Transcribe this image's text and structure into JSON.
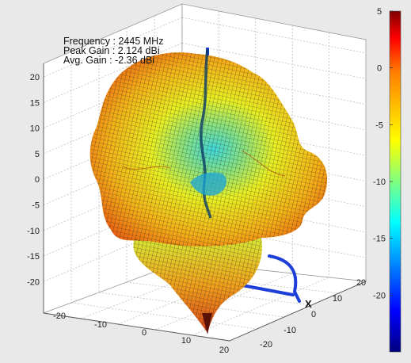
{
  "chart_data": {
    "type": "surface3d",
    "title": "",
    "annotations": [
      {
        "label": "Frequency",
        "value": "2445 MHz"
      },
      {
        "label": "Peak Gain",
        "value": "2.124 dBi"
      },
      {
        "label": "Avg. Gain",
        "value": "-2.36 dBi"
      }
    ],
    "z_ticks": [
      "20",
      "15",
      "10",
      "5",
      "0",
      "-5",
      "-10",
      "-15",
      "-20"
    ],
    "x_ticks": [
      "-20",
      "-10",
      "0",
      "10",
      "20"
    ],
    "y_ticks": [
      "20",
      "10",
      "0",
      "-10",
      "-20"
    ],
    "x_axis_label": "X",
    "colorbar": {
      "ticks": [
        "5",
        "0",
        "-5",
        "-10",
        "-15",
        "-20"
      ],
      "range": [
        -25,
        5
      ],
      "colormap": [
        "#00007f",
        "#0000ff",
        "#00ffff",
        "#ffff00",
        "#ff7f00",
        "#ff0000",
        "#7f0000"
      ]
    },
    "gain_range_dbi": [
      -25,
      2.124
    ],
    "grid": true
  }
}
